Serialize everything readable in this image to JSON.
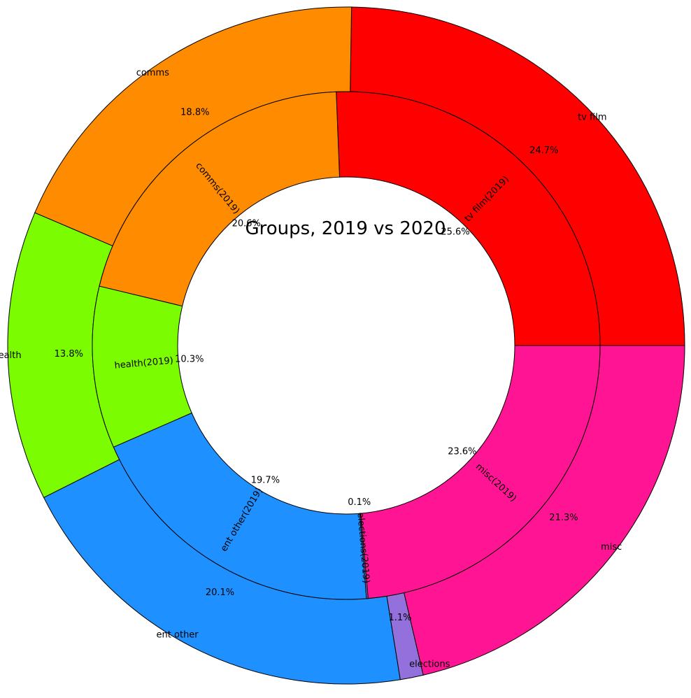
{
  "chart_data": {
    "type": "pie",
    "title": "Groups, 2019 vs 2020",
    "series": [
      {
        "ring": "outer",
        "labels": [
          "tv film",
          "comms",
          "health",
          "ent other",
          "elections",
          "misc"
        ],
        "values": [
          24.7,
          18.8,
          13.8,
          20.1,
          1.1,
          21.3
        ],
        "pct_labels": [
          "24.7%",
          "18.8%",
          "13.8%",
          "20.1%",
          "1.1%",
          "21.3%"
        ],
        "colors": [
          "#ff0000",
          "#ff8c00",
          "#7cfc00",
          "#1e90ff",
          "#9370db",
          "#ff1493"
        ]
      },
      {
        "ring": "inner",
        "labels": [
          "tv film(2019)",
          "comms(2019)",
          "health(2019)",
          "ent other(2019)",
          "elections(2019)",
          "misc(2019)"
        ],
        "values": [
          25.6,
          20.6,
          10.3,
          19.7,
          0.1,
          23.6
        ],
        "pct_labels": [
          "25.6%",
          "20.6%",
          "10.3%",
          "19.7%",
          "0.1%",
          "23.6%"
        ],
        "colors": [
          "#ff0000",
          "#ff8c00",
          "#7cfc00",
          "#1e90ff",
          "#9370db",
          "#ff1493"
        ]
      }
    ]
  }
}
